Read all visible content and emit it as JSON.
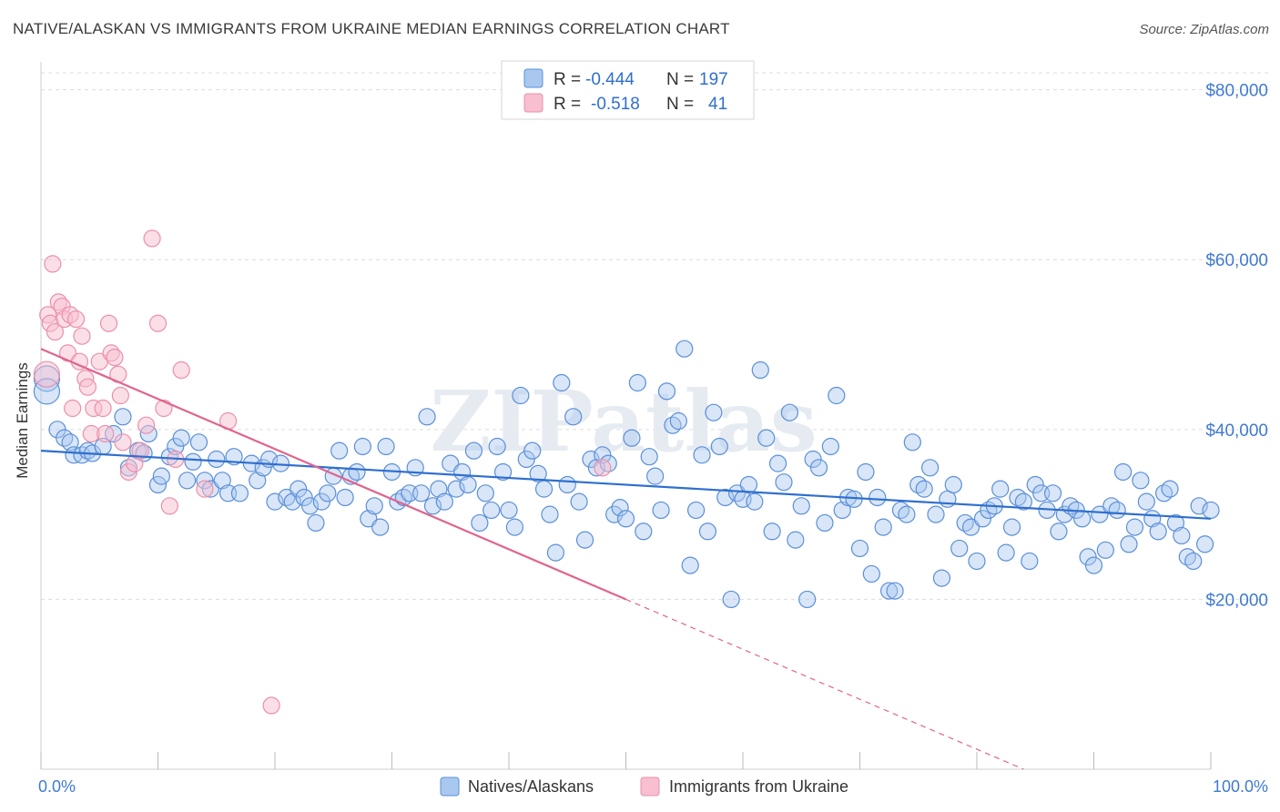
{
  "title": "NATIVE/ALASKAN VS IMMIGRANTS FROM UKRAINE MEDIAN EARNINGS CORRELATION CHART",
  "source": "Source: ZipAtlas.com",
  "watermark": "ZIPatlas",
  "colors": {
    "blue_fill": "#a9c8f0",
    "blue_stroke": "#5b8fd8",
    "blue_line": "#2f6fcf",
    "pink_fill": "#f7bfd0",
    "pink_stroke": "#ec8fab",
    "pink_line": "#e0648e",
    "grid": "#dcdcdc",
    "tick_text": "#3f7ad1"
  },
  "legend": {
    "r_label": "R =",
    "n_label": "N =",
    "rows": [
      {
        "series": "Natives/Alaskans",
        "r": "-0.444",
        "n": "197"
      },
      {
        "series": "Immigrants from Ukraine",
        "r": "-0.518",
        "n": "41"
      }
    ]
  },
  "chart_data": {
    "type": "scatter",
    "title": "NATIVE/ALASKAN VS IMMIGRANTS FROM UKRAINE MEDIAN EARNINGS CORRELATION CHART",
    "xlabel": "",
    "ylabel": "Median Earnings",
    "x_tick_labels": [
      "0.0%",
      "100.0%"
    ],
    "y_tick_labels": [
      "$20,000",
      "$40,000",
      "$60,000",
      "$80,000"
    ],
    "y_ticks": [
      20000,
      40000,
      60000,
      80000
    ],
    "xlim": [
      0,
      100
    ],
    "ylim": [
      0,
      82000
    ],
    "grid": true,
    "legend_position": "top-center",
    "series": [
      {
        "name": "Natives/Alaskans",
        "trend": {
          "x0": 0,
          "y0": 37500,
          "x1": 100,
          "y1": 29500
        },
        "points": [
          [
            0.5,
            46000
          ],
          [
            0.5,
            44500
          ],
          [
            1.4,
            40000
          ],
          [
            2,
            39000
          ],
          [
            2.5,
            38500
          ],
          [
            2.8,
            37000
          ],
          [
            3.5,
            37000
          ],
          [
            4,
            37500
          ],
          [
            4.4,
            37200
          ],
          [
            5.3,
            38000
          ],
          [
            6.2,
            39500
          ],
          [
            7,
            41500
          ],
          [
            7.5,
            35500
          ],
          [
            8.3,
            37500
          ],
          [
            8.8,
            37200
          ],
          [
            9.2,
            39500
          ],
          [
            10,
            33500
          ],
          [
            10.3,
            34500
          ],
          [
            11,
            36800
          ],
          [
            11.5,
            38000
          ],
          [
            12,
            39000
          ],
          [
            12.5,
            34000
          ],
          [
            13,
            36200
          ],
          [
            13.5,
            38500
          ],
          [
            14,
            34000
          ],
          [
            14.5,
            33000
          ],
          [
            15,
            36500
          ],
          [
            15.5,
            34000
          ],
          [
            16,
            32500
          ],
          [
            16.5,
            36800
          ],
          [
            17,
            32500
          ],
          [
            18,
            36000
          ],
          [
            18.5,
            34000
          ],
          [
            19,
            35500
          ],
          [
            19.5,
            36500
          ],
          [
            20,
            31500
          ],
          [
            20.5,
            36000
          ],
          [
            21,
            32000
          ],
          [
            21.5,
            31500
          ],
          [
            22,
            33000
          ],
          [
            22.5,
            32000
          ],
          [
            23,
            31000
          ],
          [
            23.5,
            29000
          ],
          [
            24,
            31500
          ],
          [
            24.5,
            32500
          ],
          [
            25,
            34500
          ],
          [
            25.5,
            37500
          ],
          [
            26,
            32000
          ],
          [
            26.5,
            34500
          ],
          [
            27,
            35000
          ],
          [
            27.5,
            38000
          ],
          [
            28,
            29500
          ],
          [
            28.5,
            31000
          ],
          [
            29,
            28500
          ],
          [
            29.5,
            38000
          ],
          [
            30,
            35000
          ],
          [
            30.5,
            31500
          ],
          [
            31,
            32000
          ],
          [
            31.5,
            32500
          ],
          [
            32,
            35500
          ],
          [
            32.5,
            32500
          ],
          [
            33,
            41500
          ],
          [
            33.5,
            31000
          ],
          [
            34,
            33000
          ],
          [
            34.5,
            31500
          ],
          [
            35,
            36000
          ],
          [
            35.5,
            33000
          ],
          [
            36,
            35000
          ],
          [
            36.5,
            33500
          ],
          [
            37,
            37500
          ],
          [
            37.5,
            29000
          ],
          [
            38,
            32500
          ],
          [
            38.5,
            30500
          ],
          [
            39,
            38000
          ],
          [
            39.5,
            35000
          ],
          [
            40,
            30500
          ],
          [
            40.5,
            28500
          ],
          [
            41,
            44000
          ],
          [
            41.5,
            36500
          ],
          [
            42,
            37500
          ],
          [
            42.5,
            34800
          ],
          [
            43,
            33000
          ],
          [
            43.5,
            30000
          ],
          [
            44,
            25500
          ],
          [
            44.5,
            45500
          ],
          [
            45,
            33500
          ],
          [
            45.5,
            41500
          ],
          [
            46,
            31500
          ],
          [
            46.5,
            27000
          ],
          [
            47,
            36500
          ],
          [
            47.5,
            35500
          ],
          [
            48,
            37000
          ],
          [
            48.5,
            36000
          ],
          [
            49,
            30000
          ],
          [
            49.5,
            30800
          ],
          [
            50,
            29500
          ],
          [
            50.5,
            39000
          ],
          [
            51,
            45500
          ],
          [
            51.5,
            28000
          ],
          [
            52,
            36800
          ],
          [
            52.5,
            34500
          ],
          [
            53,
            30500
          ],
          [
            53.5,
            44500
          ],
          [
            54,
            40500
          ],
          [
            54.5,
            41000
          ],
          [
            55,
            49500
          ],
          [
            55.5,
            24000
          ],
          [
            56,
            30500
          ],
          [
            56.5,
            37000
          ],
          [
            57,
            28000
          ],
          [
            57.5,
            42000
          ],
          [
            58,
            38000
          ],
          [
            58.5,
            32000
          ],
          [
            59,
            20000
          ],
          [
            59.5,
            32500
          ],
          [
            60,
            31800
          ],
          [
            60.5,
            33500
          ],
          [
            61,
            31500
          ],
          [
            61.5,
            47000
          ],
          [
            62,
            39000
          ],
          [
            62.5,
            28000
          ],
          [
            63,
            36000
          ],
          [
            63.5,
            33800
          ],
          [
            64,
            42000
          ],
          [
            64.5,
            27000
          ],
          [
            65,
            31000
          ],
          [
            65.5,
            20000
          ],
          [
            66,
            36500
          ],
          [
            66.5,
            35500
          ],
          [
            67,
            29000
          ],
          [
            67.5,
            38000
          ],
          [
            68,
            44000
          ],
          [
            68.5,
            30500
          ],
          [
            69,
            32000
          ],
          [
            69.5,
            31800
          ],
          [
            70,
            26000
          ],
          [
            70.5,
            35000
          ],
          [
            71,
            23000
          ],
          [
            71.5,
            32000
          ],
          [
            72,
            28500
          ],
          [
            72.5,
            21000
          ],
          [
            73,
            21000
          ],
          [
            73.5,
            30500
          ],
          [
            74,
            30000
          ],
          [
            74.5,
            38500
          ],
          [
            75,
            33500
          ],
          [
            75.5,
            33000
          ],
          [
            76,
            35500
          ],
          [
            76.5,
            30000
          ],
          [
            77,
            22500
          ],
          [
            77.5,
            31800
          ],
          [
            78,
            33500
          ],
          [
            78.5,
            26000
          ],
          [
            79,
            29000
          ],
          [
            79.5,
            28500
          ],
          [
            80,
            24500
          ],
          [
            80.5,
            29500
          ],
          [
            81,
            30500
          ],
          [
            81.5,
            31000
          ],
          [
            82,
            33000
          ],
          [
            82.5,
            25500
          ],
          [
            83,
            28500
          ],
          [
            83.5,
            32000
          ],
          [
            84,
            31500
          ],
          [
            84.5,
            24500
          ],
          [
            85,
            33500
          ],
          [
            85.5,
            32500
          ],
          [
            86,
            30500
          ],
          [
            86.5,
            32500
          ],
          [
            87,
            28000
          ],
          [
            87.5,
            30000
          ],
          [
            88,
            31000
          ],
          [
            88.5,
            30500
          ],
          [
            89,
            29500
          ],
          [
            89.5,
            25000
          ],
          [
            90,
            24000
          ],
          [
            90.5,
            30000
          ],
          [
            91,
            25800
          ],
          [
            91.5,
            31000
          ],
          [
            92,
            30500
          ],
          [
            92.5,
            35000
          ],
          [
            93,
            26500
          ],
          [
            93.5,
            28500
          ],
          [
            94,
            34000
          ],
          [
            94.5,
            31500
          ],
          [
            95,
            29500
          ],
          [
            95.5,
            28000
          ],
          [
            96,
            32500
          ],
          [
            96.5,
            33000
          ],
          [
            97,
            29000
          ],
          [
            97.5,
            27500
          ],
          [
            98,
            25000
          ],
          [
            98.5,
            24500
          ],
          [
            99,
            31000
          ],
          [
            99.5,
            26500
          ],
          [
            100,
            30500
          ]
        ]
      },
      {
        "name": "Immigrants from Ukraine",
        "trend": {
          "x0": 0,
          "y0": 49500,
          "x1": 50,
          "y1": 20000,
          "dashed_to_x": 84,
          "dashed_to_y": 0
        },
        "points": [
          [
            0.5,
            46500
          ],
          [
            0.6,
            53500
          ],
          [
            0.8,
            52500
          ],
          [
            1,
            59500
          ],
          [
            1.2,
            51500
          ],
          [
            1.5,
            55000
          ],
          [
            1.8,
            54500
          ],
          [
            2,
            53000
          ],
          [
            2.3,
            49000
          ],
          [
            2.5,
            53500
          ],
          [
            2.7,
            42500
          ],
          [
            3,
            53000
          ],
          [
            3.3,
            48000
          ],
          [
            3.5,
            51000
          ],
          [
            3.8,
            46000
          ],
          [
            4,
            45000
          ],
          [
            4.3,
            39500
          ],
          [
            4.5,
            42500
          ],
          [
            5,
            48000
          ],
          [
            5.3,
            42500
          ],
          [
            5.5,
            39500
          ],
          [
            5.8,
            52500
          ],
          [
            6,
            49000
          ],
          [
            6.3,
            48500
          ],
          [
            6.6,
            46500
          ],
          [
            6.8,
            44000
          ],
          [
            7,
            38500
          ],
          [
            7.5,
            35000
          ],
          [
            8,
            36000
          ],
          [
            8.5,
            37500
          ],
          [
            9,
            40500
          ],
          [
            9.5,
            62500
          ],
          [
            10,
            52500
          ],
          [
            10.5,
            42500
          ],
          [
            11,
            31000
          ],
          [
            11.5,
            36500
          ],
          [
            12,
            47000
          ],
          [
            14,
            33000
          ],
          [
            16,
            41000
          ],
          [
            19.7,
            7500
          ],
          [
            48,
            35500
          ]
        ]
      }
    ]
  }
}
